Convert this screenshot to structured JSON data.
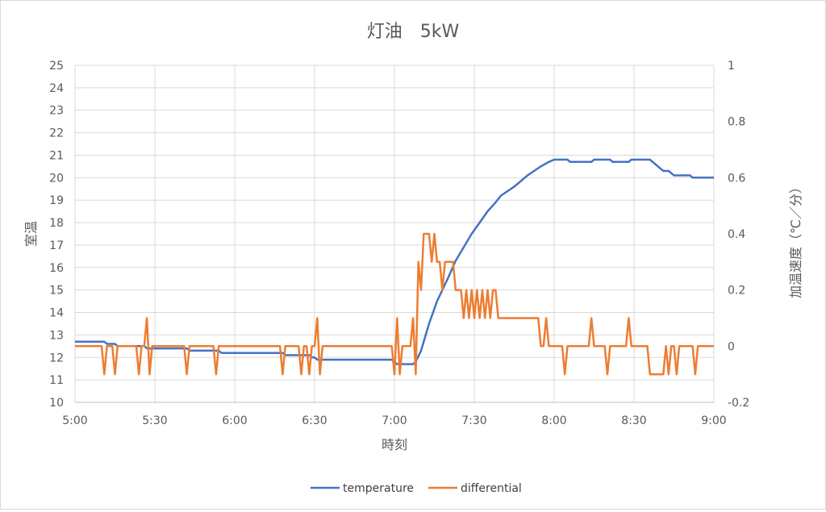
{
  "chart_data": {
    "type": "line",
    "title": "灯油　5kW",
    "xlabel": "時刻",
    "ylabel": "室温",
    "y2label": "加温速度（℃／分）",
    "x_ticks": [
      "5:00",
      "5:30",
      "6:00",
      "6:30",
      "7:00",
      "7:30",
      "8:00",
      "8:30",
      "9:00"
    ],
    "ylim": [
      10,
      25
    ],
    "y_ticks": [
      "10",
      "11",
      "12",
      "13",
      "14",
      "15",
      "16",
      "17",
      "18",
      "19",
      "20",
      "21",
      "22",
      "23",
      "24",
      "25"
    ],
    "y2lim": [
      -0.2,
      1
    ],
    "y2_ticks": [
      "-0.2",
      "0",
      "0.2",
      "0.4",
      "0.6",
      "0.8",
      "1"
    ],
    "grid": true,
    "legend_position": "bottom",
    "series": [
      {
        "name": "temperature",
        "axis": "left",
        "color": "#4472c4",
        "points": [
          [
            "5:00",
            12.7
          ],
          [
            "5:11",
            12.7
          ],
          [
            "5:12",
            12.6
          ],
          [
            "5:15",
            12.6
          ],
          [
            "5:16",
            12.5
          ],
          [
            "5:26",
            12.5
          ],
          [
            "5:27",
            12.4
          ],
          [
            "5:42",
            12.4
          ],
          [
            "5:43",
            12.3
          ],
          [
            "5:54",
            12.3
          ],
          [
            "5:55",
            12.2
          ],
          [
            "6:18",
            12.2
          ],
          [
            "6:19",
            12.1
          ],
          [
            "6:28",
            12.1
          ],
          [
            "6:29",
            12.0
          ],
          [
            "6:30",
            12.0
          ],
          [
            "6:31",
            11.9
          ],
          [
            "6:59",
            11.9
          ],
          [
            "7:00",
            11.8
          ],
          [
            "7:01",
            11.7
          ],
          [
            "7:07",
            11.7
          ],
          [
            "7:08",
            11.8
          ],
          [
            "7:10",
            12.3
          ],
          [
            "7:13",
            13.5
          ],
          [
            "7:16",
            14.5
          ],
          [
            "7:20",
            15.5
          ],
          [
            "7:23",
            16.3
          ],
          [
            "7:26",
            16.9
          ],
          [
            "7:29",
            17.5
          ],
          [
            "7:32",
            18.0
          ],
          [
            "7:35",
            18.5
          ],
          [
            "7:38",
            18.9
          ],
          [
            "7:40",
            19.2
          ],
          [
            "7:45",
            19.6
          ],
          [
            "7:50",
            20.1
          ],
          [
            "7:55",
            20.5
          ],
          [
            "7:58",
            20.7
          ],
          [
            "8:00",
            20.8
          ],
          [
            "8:05",
            20.8
          ],
          [
            "8:06",
            20.7
          ],
          [
            "8:14",
            20.7
          ],
          [
            "8:15",
            20.8
          ],
          [
            "8:21",
            20.8
          ],
          [
            "8:22",
            20.7
          ],
          [
            "8:28",
            20.7
          ],
          [
            "8:29",
            20.8
          ],
          [
            "8:36",
            20.8
          ],
          [
            "8:39",
            20.5
          ],
          [
            "8:41",
            20.3
          ],
          [
            "8:43",
            20.3
          ],
          [
            "8:44",
            20.2
          ],
          [
            "8:45",
            20.1
          ],
          [
            "8:51",
            20.1
          ],
          [
            "8:52",
            20.0
          ],
          [
            "9:00",
            20.0
          ]
        ]
      },
      {
        "name": "differential",
        "axis": "right",
        "color": "#ed7d31",
        "points": [
          [
            "5:00",
            0
          ],
          [
            "5:10",
            0
          ],
          [
            "5:11",
            -0.1
          ],
          [
            "5:12",
            0
          ],
          [
            "5:14",
            0
          ],
          [
            "5:15",
            -0.1
          ],
          [
            "5:16",
            0
          ],
          [
            "5:23",
            0
          ],
          [
            "5:24",
            -0.1
          ],
          [
            "5:25",
            0
          ],
          [
            "5:26",
            0
          ],
          [
            "5:27",
            0.1
          ],
          [
            "5:28",
            -0.1
          ],
          [
            "5:29",
            0
          ],
          [
            "5:41",
            0
          ],
          [
            "5:42",
            -0.1
          ],
          [
            "5:43",
            0
          ],
          [
            "5:52",
            0
          ],
          [
            "5:53",
            -0.1
          ],
          [
            "5:54",
            0
          ],
          [
            "6:17",
            0
          ],
          [
            "6:18",
            -0.1
          ],
          [
            "6:19",
            0
          ],
          [
            "6:24",
            0
          ],
          [
            "6:25",
            -0.1
          ],
          [
            "6:26",
            0
          ],
          [
            "6:27",
            0
          ],
          [
            "6:28",
            -0.1
          ],
          [
            "6:29",
            0
          ],
          [
            "6:30",
            0
          ],
          [
            "6:31",
            0.1
          ],
          [
            "6:32",
            -0.1
          ],
          [
            "6:33",
            0
          ],
          [
            "6:59",
            0
          ],
          [
            "7:00",
            -0.1
          ],
          [
            "7:01",
            0.1
          ],
          [
            "7:02",
            -0.1
          ],
          [
            "7:03",
            0
          ],
          [
            "7:06",
            0
          ],
          [
            "7:07",
            0.1
          ],
          [
            "7:08",
            -0.1
          ],
          [
            "7:09",
            0.3
          ],
          [
            "7:10",
            0.2
          ],
          [
            "7:11",
            0.4
          ],
          [
            "7:13",
            0.4
          ],
          [
            "7:14",
            0.3
          ],
          [
            "7:15",
            0.4
          ],
          [
            "7:16",
            0.3
          ],
          [
            "7:17",
            0.3
          ],
          [
            "7:18",
            0.2
          ],
          [
            "7:19",
            0.3
          ],
          [
            "7:22",
            0.3
          ],
          [
            "7:23",
            0.2
          ],
          [
            "7:25",
            0.2
          ],
          [
            "7:26",
            0.1
          ],
          [
            "7:27",
            0.2
          ],
          [
            "7:28",
            0.1
          ],
          [
            "7:29",
            0.2
          ],
          [
            "7:30",
            0.1
          ],
          [
            "7:31",
            0.2
          ],
          [
            "7:32",
            0.1
          ],
          [
            "7:33",
            0.2
          ],
          [
            "7:34",
            0.1
          ],
          [
            "7:35",
            0.2
          ],
          [
            "7:36",
            0.1
          ],
          [
            "7:37",
            0.2
          ],
          [
            "7:38",
            0.2
          ],
          [
            "7:39",
            0.1
          ],
          [
            "7:54",
            0.1
          ],
          [
            "7:55",
            0
          ],
          [
            "7:56",
            0
          ],
          [
            "7:57",
            0.1
          ],
          [
            "7:58",
            0
          ],
          [
            "8:03",
            0
          ],
          [
            "8:04",
            -0.1
          ],
          [
            "8:05",
            0
          ],
          [
            "8:13",
            0
          ],
          [
            "8:14",
            0.1
          ],
          [
            "8:15",
            0
          ],
          [
            "8:19",
            0
          ],
          [
            "8:20",
            -0.1
          ],
          [
            "8:21",
            0
          ],
          [
            "8:27",
            0
          ],
          [
            "8:28",
            0.1
          ],
          [
            "8:29",
            0
          ],
          [
            "8:35",
            0
          ],
          [
            "8:36",
            -0.1
          ],
          [
            "8:41",
            -0.1
          ],
          [
            "8:42",
            0
          ],
          [
            "8:43",
            -0.1
          ],
          [
            "8:44",
            0
          ],
          [
            "8:45",
            0
          ],
          [
            "8:46",
            -0.1
          ],
          [
            "8:47",
            0
          ],
          [
            "8:52",
            0
          ],
          [
            "8:53",
            -0.1
          ],
          [
            "8:54",
            0
          ],
          [
            "9:00",
            0
          ]
        ]
      }
    ]
  }
}
